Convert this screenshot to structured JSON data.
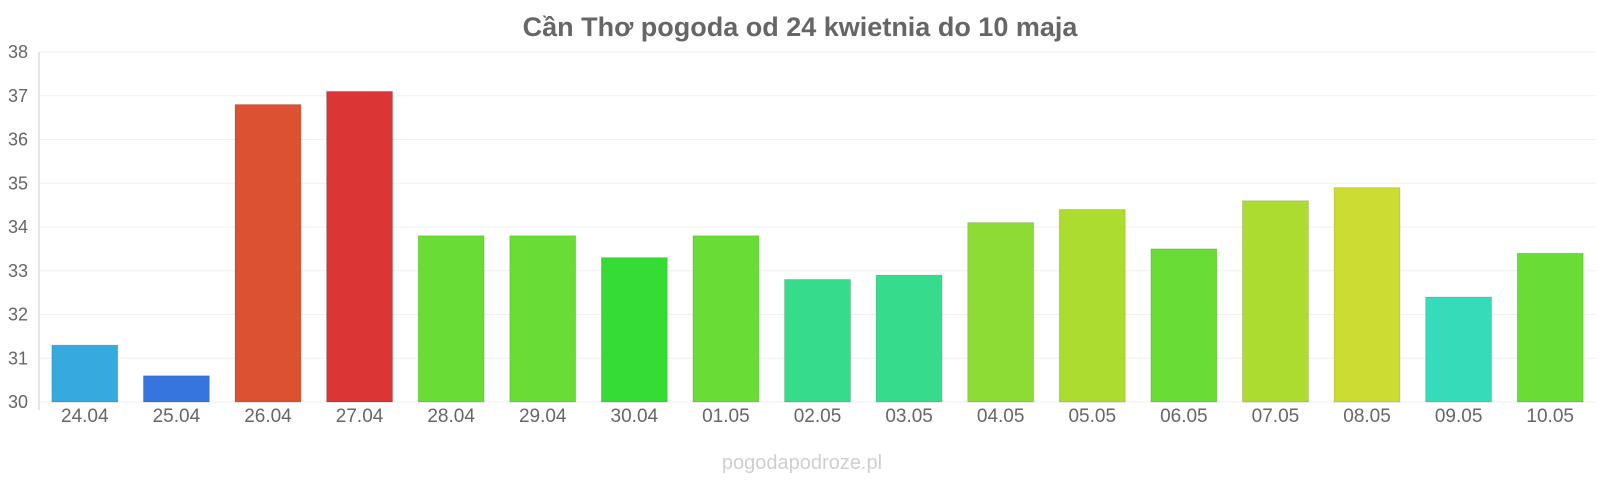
{
  "chart_data": {
    "type": "bar",
    "title": "Cần Thơ pogoda od 24 kwietnia do 10 maja",
    "xlabel": "",
    "ylabel": "",
    "ylim": [
      30,
      38
    ],
    "yticks": [
      "30",
      "31",
      "32",
      "33",
      "34",
      "35",
      "36",
      "37",
      "38"
    ],
    "categories": [
      "24.04",
      "25.04",
      "26.04",
      "27.04",
      "28.04",
      "29.04",
      "30.04",
      "01.05",
      "02.05",
      "03.05",
      "04.05",
      "05.05",
      "06.05",
      "07.05",
      "08.05",
      "09.05",
      "10.05"
    ],
    "values": [
      31.3,
      30.6,
      36.8,
      37.1,
      33.8,
      33.8,
      33.3,
      33.8,
      32.8,
      32.9,
      34.1,
      34.4,
      33.5,
      34.6,
      34.9,
      32.4,
      33.4
    ],
    "colors": [
      "#36a9de",
      "#3575de",
      "#dd5133",
      "#db3535",
      "#6adc36",
      "#6adc36",
      "#36dc36",
      "#6adc36",
      "#36dc8c",
      "#36dc8c",
      "#8ddc36",
      "#acdc30",
      "#6adc36",
      "#acdc30",
      "#ccdc33",
      "#36dcba",
      "#6adc36"
    ],
    "grid": true,
    "legend": "none"
  },
  "watermark": "pogodapodroze.pl"
}
